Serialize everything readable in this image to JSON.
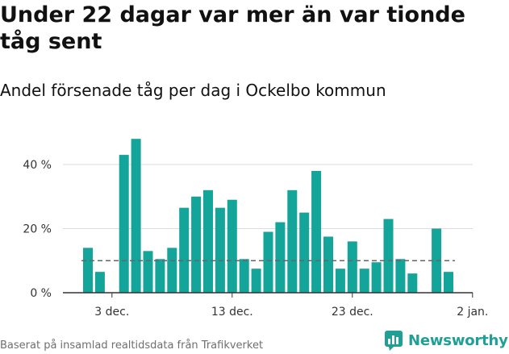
{
  "title": "Under 22 dagar var mer än var tionde tåg sent",
  "subtitle": "Andel försenade tåg per dag i Ockelbo kommun",
  "source": "Baserat på insamlad realtidsdata från Trafikverket",
  "logo_text": "Newsworthy",
  "colors": {
    "bar": "#13a49a",
    "reference_line": "#666666",
    "axis": "#333333",
    "grid": "#dddddd",
    "logo": "#1f9f96"
  },
  "chart_data": {
    "type": "bar",
    "categories": [
      "2023-12-01",
      "2023-12-02",
      "2023-12-03",
      "2023-12-04",
      "2023-12-05",
      "2023-12-06",
      "2023-12-07",
      "2023-12-08",
      "2023-12-09",
      "2023-12-10",
      "2023-12-11",
      "2023-12-12",
      "2023-12-13",
      "2023-12-14",
      "2023-12-15",
      "2023-12-16",
      "2023-12-17",
      "2023-12-18",
      "2023-12-19",
      "2023-12-20",
      "2023-12-21",
      "2023-12-22",
      "2023-12-23",
      "2023-12-24",
      "2023-12-25",
      "2023-12-26",
      "2023-12-27",
      "2023-12-28",
      "2023-12-29",
      "2023-12-30",
      "2023-12-31"
    ],
    "values": [
      14,
      6.5,
      0,
      43,
      48,
      13,
      10.5,
      14,
      26.5,
      30,
      32,
      26.5,
      29,
      10.5,
      7.5,
      19,
      22,
      32,
      25,
      38,
      17.5,
      7.5,
      16,
      7.5,
      9.5,
      23,
      10.5,
      6,
      0,
      20,
      6.5
    ],
    "reference_line": 10,
    "ylim": [
      0,
      50
    ],
    "yticks": [
      0,
      20,
      40
    ],
    "ytick_labels": [
      "0 %",
      "20 %",
      "40 %"
    ],
    "xtick_labels": [
      {
        "date": "2023-12-03",
        "label": "3 dec."
      },
      {
        "date": "2023-12-13",
        "label": "13 dec."
      },
      {
        "date": "2023-12-23",
        "label": "23 dec."
      },
      {
        "date": "2024-01-02",
        "label": "2 jan."
      }
    ],
    "grid": true,
    "xlabel": "",
    "ylabel": ""
  }
}
